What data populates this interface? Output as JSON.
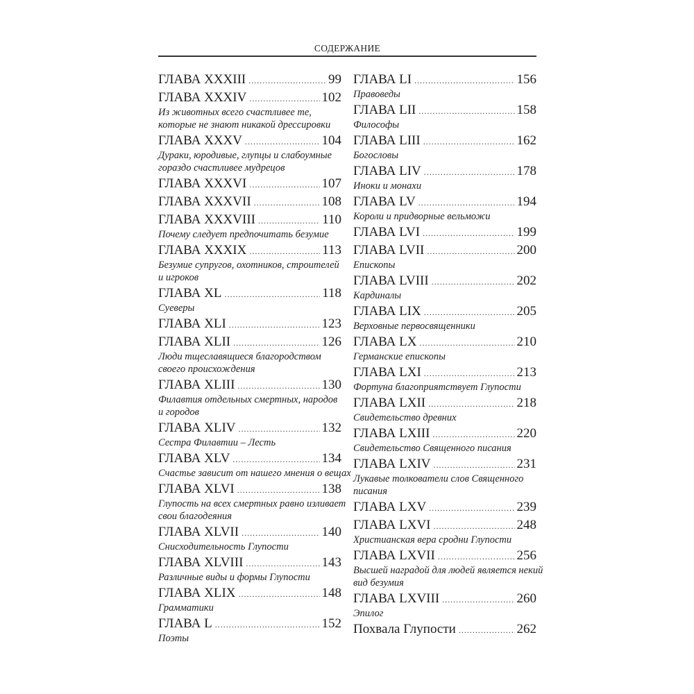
{
  "header": {
    "title": "СОДЕРЖАНИЕ"
  },
  "columns": {
    "left": [
      {
        "title": "ГЛАВА XXXIII",
        "page": "99",
        "subtitle": []
      },
      {
        "title": "ГЛАВА XXXIV",
        "page": "102",
        "subtitle": [
          "Из животных всего счастливее те,",
          "которые не знают никакой дрессировки"
        ]
      },
      {
        "title": "ГЛАВА XXXV",
        "page": "104",
        "subtitle": [
          "Дураки, юродивые, глупцы и слабоумные",
          "гораздо счастливее мудрецов"
        ]
      },
      {
        "title": "ГЛАВА XXXVI",
        "page": "107",
        "subtitle": []
      },
      {
        "title": "ГЛАВА XXXVII",
        "page": "108",
        "subtitle": []
      },
      {
        "title": "ГЛАВА XXXVIII",
        "page": "110",
        "subtitle": [
          "Почему следует предпочитать безумие"
        ]
      },
      {
        "title": "ГЛАВА XXXIX",
        "page": "113",
        "subtitle": [
          "Безумие супругов, охотников, строителей",
          "и игроков"
        ]
      },
      {
        "title": "ГЛАВА XL",
        "page": "118",
        "subtitle": [
          "Суеверы"
        ]
      },
      {
        "title": "ГЛАВА XLI",
        "page": "123",
        "subtitle": []
      },
      {
        "title": "ГЛАВА XLII",
        "page": "126",
        "subtitle": [
          "Люди тщеславящиеся благородством",
          "своего происхождения"
        ]
      },
      {
        "title": "ГЛАВА XLIII",
        "page": "130",
        "subtitle": [
          "Филавтия отдельных смертных, народов",
          "и городов"
        ]
      },
      {
        "title": "ГЛАВА XLIV",
        "page": "132",
        "subtitle": [
          "Сестра Филавтии – Лесть"
        ]
      },
      {
        "title": "ГЛАВА XLV",
        "page": "134",
        "subtitle": [
          "Счастье зависит от нашего мнения о вещах"
        ]
      },
      {
        "title": "ГЛАВА XLVI",
        "page": "138",
        "subtitle": [
          "Глупость на всех смертных равно изливает",
          "свои благодеяния"
        ]
      },
      {
        "title": "ГЛАВА XLVII",
        "page": "140",
        "subtitle": [
          "Снисходительность Глупости"
        ]
      },
      {
        "title": "ГЛАВА XLVIII",
        "page": "143",
        "subtitle": [
          "Различные виды и формы Глупости"
        ]
      },
      {
        "title": "ГЛАВА XLIX",
        "page": "148",
        "subtitle": [
          "Грамматики"
        ]
      },
      {
        "title": "ГЛАВА L",
        "page": "152",
        "subtitle": [
          "Поэты"
        ]
      }
    ],
    "right": [
      {
        "title": "ГЛАВА LI",
        "page": "156",
        "subtitle": [
          "Правоведы"
        ]
      },
      {
        "title": "ГЛАВА LII",
        "page": "158",
        "subtitle": [
          "Философы"
        ]
      },
      {
        "title": "ГЛАВА LIII",
        "page": "162",
        "subtitle": [
          "Богословы"
        ]
      },
      {
        "title": "ГЛАВА LIV",
        "page": "178",
        "subtitle": [
          "Иноки и монахи"
        ]
      },
      {
        "title": "ГЛАВА LV",
        "page": "194",
        "subtitle": [
          "Короли и придворные вельможи"
        ]
      },
      {
        "title": "ГЛАВА LVI",
        "page": "199",
        "subtitle": []
      },
      {
        "title": "ГЛАВА LVII",
        "page": "200",
        "subtitle": [
          "Епископы"
        ]
      },
      {
        "title": "ГЛАВА LVIII",
        "page": "202",
        "subtitle": [
          "Кардиналы"
        ]
      },
      {
        "title": "ГЛАВА LIX",
        "page": "205",
        "subtitle": [
          "Верховные первосвященники"
        ]
      },
      {
        "title": "ГЛАВА LX",
        "page": "210",
        "subtitle": [
          "Германские епископы"
        ]
      },
      {
        "title": "ГЛАВА LXI",
        "page": "213",
        "subtitle": [
          "Фортуна благоприятствует Глупости"
        ]
      },
      {
        "title": "ГЛАВА LXII",
        "page": "218",
        "subtitle": [
          "Свидетельство древних"
        ]
      },
      {
        "title": "ГЛАВА LXIII",
        "page": "220",
        "subtitle": [
          "Свидетельство Священного писания"
        ]
      },
      {
        "title": "ГЛАВА LXIV",
        "page": "231",
        "subtitle": [
          "Лукавые толкователи слов Священного",
          "писания"
        ]
      },
      {
        "title": "ГЛАВА LXV",
        "page": "239",
        "subtitle": []
      },
      {
        "title": "ГЛАВА LXVI",
        "page": "248",
        "subtitle": [
          "Христианская вера сродни Глупости"
        ]
      },
      {
        "title": "ГЛАВА LXVII",
        "page": "256",
        "subtitle": [
          "Высшей наградой для людей является некий",
          "вид безумия"
        ]
      },
      {
        "title": "ГЛАВА LXVIII",
        "page": "260",
        "subtitle": [
          "Эпилог"
        ]
      },
      {
        "title": "Похвала Глупости",
        "page": "262",
        "subtitle": []
      }
    ]
  }
}
